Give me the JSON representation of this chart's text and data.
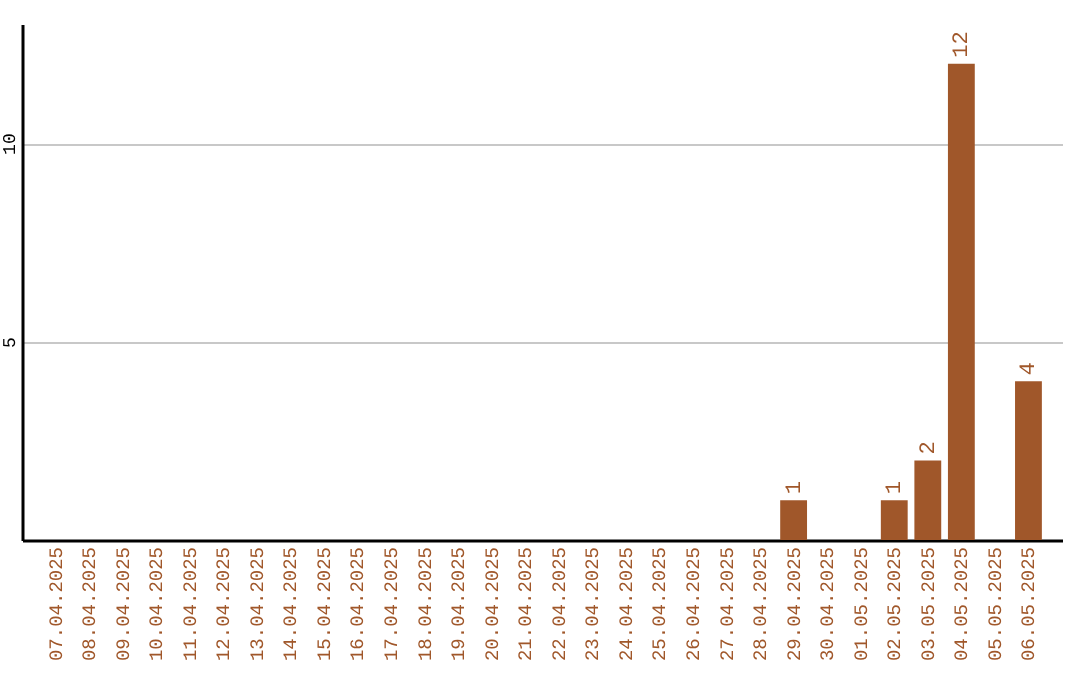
{
  "chart_data": {
    "type": "bar",
    "categories": [
      "07.04.2025",
      "08.04.2025",
      "09.04.2025",
      "10.04.2025",
      "11.04.2025",
      "12.04.2025",
      "13.04.2025",
      "14.04.2025",
      "15.04.2025",
      "16.04.2025",
      "17.04.2025",
      "18.04.2025",
      "19.04.2025",
      "20.04.2025",
      "21.04.2025",
      "22.04.2025",
      "23.04.2025",
      "24.04.2025",
      "25.04.2025",
      "26.04.2025",
      "27.04.2025",
      "28.04.2025",
      "29.04.2025",
      "30.04.2025",
      "01.05.2025",
      "02.05.2025",
      "03.05.2025",
      "04.05.2025",
      "05.05.2025",
      "06.05.2025"
    ],
    "values": [
      0,
      0,
      0,
      0,
      0,
      0,
      0,
      0,
      0,
      0,
      0,
      0,
      0,
      0,
      0,
      0,
      0,
      0,
      0,
      0,
      0,
      0,
      1,
      0,
      0,
      1,
      2,
      12,
      0,
      4
    ],
    "value_labels": [
      null,
      null,
      null,
      null,
      null,
      null,
      null,
      null,
      null,
      null,
      null,
      null,
      null,
      null,
      null,
      null,
      null,
      null,
      null,
      null,
      null,
      null,
      "1",
      null,
      null,
      "1",
      "2",
      "12",
      null,
      "4"
    ],
    "color": "#a0572a",
    "ylim": [
      0,
      13
    ],
    "yticks": [
      5,
      10
    ],
    "grid": "y"
  }
}
